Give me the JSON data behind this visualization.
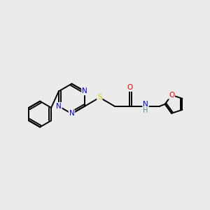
{
  "background_color": "#ebebeb",
  "bond_color": "#000000",
  "atom_colors": {
    "N": "#0000ff",
    "O": "#ff0000",
    "S": "#cccc00",
    "C": "#000000",
    "H": "#4a9090"
  },
  "figsize": [
    3.0,
    3.0
  ],
  "dpi": 100,
  "lw": 1.4,
  "fs": 7.5
}
